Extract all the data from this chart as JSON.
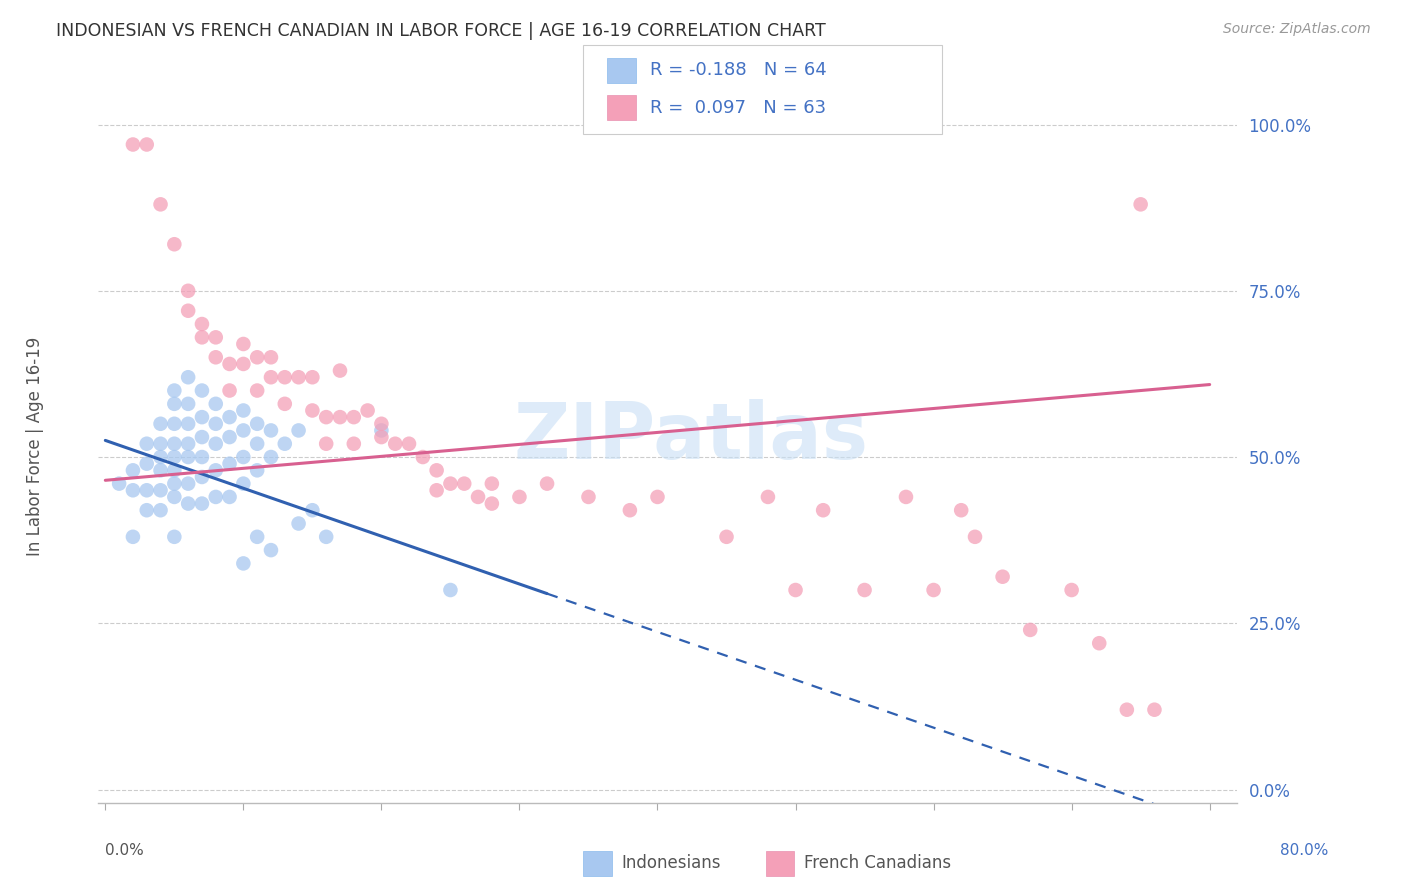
{
  "title": "INDONESIAN VS FRENCH CANADIAN IN LABOR FORCE | AGE 16-19 CORRELATION CHART",
  "source": "Source: ZipAtlas.com",
  "ylabel": "In Labor Force | Age 16-19",
  "ytick_vals": [
    0.0,
    0.25,
    0.5,
    0.75,
    1.0
  ],
  "ytick_labels": [
    "0.0%",
    "25.0%",
    "50.0%",
    "75.0%",
    "100.0%"
  ],
  "xlim": [
    -0.005,
    0.82
  ],
  "ylim": [
    -0.02,
    1.08
  ],
  "blue_color": "#A8C8F0",
  "pink_color": "#F4A0B8",
  "blue_line_color": "#3060B0",
  "pink_line_color": "#D86090",
  "watermark_color": "#C8DFF5",
  "watermark": "ZIPatlas",
  "blue_intercept": 0.525,
  "blue_slope": -0.72,
  "pink_intercept": 0.465,
  "pink_slope": 0.18,
  "blue_solid_xend": 0.32,
  "indonesian_x": [
    0.01,
    0.02,
    0.02,
    0.02,
    0.03,
    0.03,
    0.03,
    0.03,
    0.04,
    0.04,
    0.04,
    0.04,
    0.04,
    0.04,
    0.05,
    0.05,
    0.05,
    0.05,
    0.05,
    0.05,
    0.05,
    0.05,
    0.05,
    0.06,
    0.06,
    0.06,
    0.06,
    0.06,
    0.06,
    0.06,
    0.07,
    0.07,
    0.07,
    0.07,
    0.07,
    0.07,
    0.08,
    0.08,
    0.08,
    0.08,
    0.08,
    0.09,
    0.09,
    0.09,
    0.09,
    0.1,
    0.1,
    0.1,
    0.1,
    0.1,
    0.11,
    0.11,
    0.11,
    0.11,
    0.12,
    0.12,
    0.12,
    0.13,
    0.14,
    0.14,
    0.15,
    0.16,
    0.2,
    0.25
  ],
  "indonesian_y": [
    0.46,
    0.48,
    0.45,
    0.38,
    0.52,
    0.49,
    0.45,
    0.42,
    0.55,
    0.52,
    0.5,
    0.48,
    0.45,
    0.42,
    0.6,
    0.58,
    0.55,
    0.52,
    0.5,
    0.48,
    0.46,
    0.44,
    0.38,
    0.62,
    0.58,
    0.55,
    0.52,
    0.5,
    0.46,
    0.43,
    0.6,
    0.56,
    0.53,
    0.5,
    0.47,
    0.43,
    0.58,
    0.55,
    0.52,
    0.48,
    0.44,
    0.56,
    0.53,
    0.49,
    0.44,
    0.57,
    0.54,
    0.5,
    0.46,
    0.34,
    0.55,
    0.52,
    0.48,
    0.38,
    0.54,
    0.5,
    0.36,
    0.52,
    0.54,
    0.4,
    0.42,
    0.38,
    0.54,
    0.3
  ],
  "french_x": [
    0.02,
    0.03,
    0.04,
    0.05,
    0.06,
    0.06,
    0.07,
    0.07,
    0.08,
    0.08,
    0.09,
    0.09,
    0.1,
    0.1,
    0.11,
    0.11,
    0.12,
    0.12,
    0.13,
    0.13,
    0.14,
    0.15,
    0.15,
    0.16,
    0.16,
    0.17,
    0.17,
    0.18,
    0.18,
    0.19,
    0.2,
    0.2,
    0.21,
    0.22,
    0.23,
    0.24,
    0.24,
    0.25,
    0.26,
    0.27,
    0.28,
    0.28,
    0.3,
    0.32,
    0.35,
    0.38,
    0.4,
    0.45,
    0.48,
    0.5,
    0.52,
    0.55,
    0.58,
    0.6,
    0.62,
    0.63,
    0.65,
    0.67,
    0.7,
    0.72,
    0.74,
    0.75,
    0.76
  ],
  "french_y": [
    0.97,
    0.97,
    0.88,
    0.82,
    0.75,
    0.72,
    0.7,
    0.68,
    0.68,
    0.65,
    0.64,
    0.6,
    0.67,
    0.64,
    0.65,
    0.6,
    0.65,
    0.62,
    0.62,
    0.58,
    0.62,
    0.62,
    0.57,
    0.56,
    0.52,
    0.63,
    0.56,
    0.56,
    0.52,
    0.57,
    0.55,
    0.53,
    0.52,
    0.52,
    0.5,
    0.48,
    0.45,
    0.46,
    0.46,
    0.44,
    0.46,
    0.43,
    0.44,
    0.46,
    0.44,
    0.42,
    0.44,
    0.38,
    0.44,
    0.3,
    0.42,
    0.3,
    0.44,
    0.3,
    0.42,
    0.38,
    0.32,
    0.24,
    0.3,
    0.22,
    0.12,
    0.88,
    0.12
  ]
}
